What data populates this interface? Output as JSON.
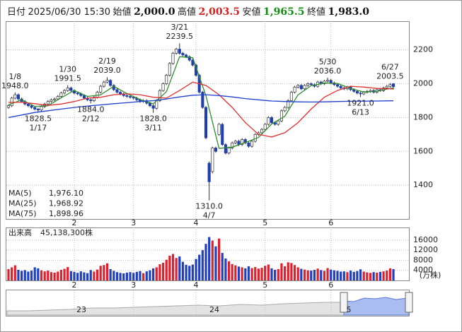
{
  "chart_data": {
    "type": "candlestick",
    "header": {
      "date_label": "日付",
      "date": "2025/06/30 15:30",
      "items": [
        {
          "label": "始値",
          "value": "2,000.0",
          "color": "#111"
        },
        {
          "label": "高値",
          "value": "2,003.5",
          "color": "#d42020"
        },
        {
          "label": "安値",
          "value": "1,965.5",
          "color": "#128a12"
        },
        {
          "label": "終値",
          "value": "1,983.0",
          "color": "#111"
        }
      ]
    },
    "ylim": [
      1200,
      2370
    ],
    "yticks": [
      1400,
      1600,
      1800,
      2000,
      2200
    ],
    "grid": true,
    "up_color": "#ffffff",
    "down_color": "#1f3fae",
    "edge_color": "#333333",
    "month_ticks": [
      {
        "value": 20,
        "label": "2"
      },
      {
        "value": 38,
        "label": "3"
      },
      {
        "value": 57,
        "label": "4"
      },
      {
        "value": 78,
        "label": "5"
      },
      {
        "value": 98,
        "label": "6"
      }
    ],
    "ohlc": [
      [
        1860,
        1878,
        1852,
        1870
      ],
      [
        1870,
        1923,
        1862,
        1915
      ],
      [
        1915,
        1948,
        1907,
        1935
      ],
      [
        1935,
        1943,
        1902,
        1910
      ],
      [
        1910,
        1918,
        1887,
        1895
      ],
      [
        1895,
        1903,
        1872,
        1880
      ],
      [
        1880,
        1888,
        1862,
        1870
      ],
      [
        1870,
        1878,
        1852,
        1860
      ],
      [
        1860,
        1868,
        1842,
        1850
      ],
      [
        1850,
        1858,
        1828.5,
        1845
      ],
      [
        1845,
        1873,
        1837,
        1865
      ],
      [
        1865,
        1888,
        1857,
        1880
      ],
      [
        1880,
        1903,
        1872,
        1895
      ],
      [
        1895,
        1913,
        1887,
        1905
      ],
      [
        1905,
        1918,
        1897,
        1910
      ],
      [
        1910,
        1933,
        1902,
        1925
      ],
      [
        1925,
        1953,
        1917,
        1945
      ],
      [
        1945,
        1968,
        1937,
        1960
      ],
      [
        1960,
        1991.5,
        1952,
        1975
      ],
      [
        1975,
        1983,
        1952,
        1960
      ],
      [
        1960,
        1968,
        1937,
        1945
      ],
      [
        1945,
        1953,
        1932,
        1940
      ],
      [
        1940,
        1948,
        1922,
        1930
      ],
      [
        1930,
        1938,
        1907,
        1915
      ],
      [
        1915,
        1923,
        1897,
        1905
      ],
      [
        1905,
        1913,
        1884,
        1900
      ],
      [
        1900,
        1928,
        1892,
        1920
      ],
      [
        1920,
        1958,
        1912,
        1950
      ],
      [
        1950,
        1993,
        1942,
        1985
      ],
      [
        1985,
        2018,
        1977,
        2010
      ],
      [
        2010,
        2039,
        2002,
        2020
      ],
      [
        2020,
        2028,
        1982,
        1990
      ],
      [
        1990,
        1998,
        1957,
        1965
      ],
      [
        1965,
        1973,
        1942,
        1950
      ],
      [
        1950,
        1958,
        1932,
        1940
      ],
      [
        1940,
        1948,
        1922,
        1930
      ],
      [
        1930,
        1938,
        1917,
        1925
      ],
      [
        1925,
        1933,
        1912,
        1920
      ],
      [
        1920,
        1928,
        1907,
        1915
      ],
      [
        1915,
        1923,
        1897,
        1905
      ],
      [
        1905,
        1913,
        1887,
        1895
      ],
      [
        1895,
        1908,
        1887,
        1900
      ],
      [
        1900,
        1908,
        1877,
        1885
      ],
      [
        1885,
        1893,
        1862,
        1870
      ],
      [
        1870,
        1878,
        1828,
        1855
      ],
      [
        1855,
        1908,
        1847,
        1900
      ],
      [
        1900,
        1968,
        1892,
        1960
      ],
      [
        1960,
        2008,
        1952,
        2000
      ],
      [
        2000,
        2058,
        1992,
        2050
      ],
      [
        2050,
        2128,
        2042,
        2120
      ],
      [
        2120,
        2188,
        2112,
        2180
      ],
      [
        2180,
        2213,
        2172,
        2205
      ],
      [
        2205,
        2239.5,
        2172,
        2180
      ],
      [
        2180,
        2188,
        2162,
        2170
      ],
      [
        2170,
        2178,
        2152,
        2160
      ],
      [
        2160,
        2168,
        2132,
        2140
      ],
      [
        2140,
        2148,
        2102,
        2110
      ],
      [
        2110,
        2118,
        2042,
        2050
      ],
      [
        2050,
        2058,
        1942,
        1950
      ],
      [
        1950,
        1958,
        1852,
        1860
      ],
      [
        1860,
        1868,
        1672,
        1680
      ],
      [
        1530,
        1540,
        1310,
        1420
      ],
      [
        1480,
        1628,
        1470,
        1620
      ],
      [
        1620,
        1628,
        1592,
        1600
      ],
      [
        1700,
        1768,
        1692,
        1760
      ],
      [
        1760,
        1768,
        1632,
        1640
      ],
      [
        1640,
        1648,
        1582,
        1590
      ],
      [
        1590,
        1628,
        1582,
        1620
      ],
      [
        1620,
        1658,
        1612,
        1650
      ],
      [
        1650,
        1668,
        1642,
        1660
      ],
      [
        1660,
        1668,
        1632,
        1640
      ],
      [
        1640,
        1678,
        1632,
        1670
      ],
      [
        1670,
        1678,
        1642,
        1650
      ],
      [
        1650,
        1658,
        1622,
        1630
      ],
      [
        1630,
        1668,
        1622,
        1660
      ],
      [
        1660,
        1708,
        1652,
        1700
      ],
      [
        1700,
        1718,
        1692,
        1710
      ],
      [
        1710,
        1738,
        1702,
        1730
      ],
      [
        1730,
        1768,
        1722,
        1760
      ],
      [
        1760,
        1808,
        1752,
        1800
      ],
      [
        1800,
        1808,
        1762,
        1770
      ],
      [
        1770,
        1778,
        1752,
        1760
      ],
      [
        1760,
        1788,
        1752,
        1780
      ],
      [
        1780,
        1848,
        1772,
        1840
      ],
      [
        1840,
        1868,
        1832,
        1860
      ],
      [
        1860,
        1908,
        1852,
        1900
      ],
      [
        1900,
        1958,
        1892,
        1950
      ],
      [
        1950,
        1988,
        1942,
        1980
      ],
      [
        1980,
        1998,
        1972,
        1990
      ],
      [
        1990,
        1998,
        1962,
        1970
      ],
      [
        1970,
        1998,
        1962,
        1990
      ],
      [
        1990,
        2008,
        1982,
        2000
      ],
      [
        2000,
        2008,
        1987,
        1995
      ],
      [
        1995,
        2003,
        1977,
        1985
      ],
      [
        1985,
        2018,
        1977,
        2010
      ],
      [
        2010,
        2018,
        1992,
        2000
      ],
      [
        2000,
        2023,
        1992,
        2015
      ],
      [
        2015,
        2036,
        2007,
        2020
      ],
      [
        2020,
        2028,
        1997,
        2005
      ],
      [
        2005,
        2013,
        1987,
        1995
      ],
      [
        1995,
        2003,
        1977,
        1985
      ],
      [
        1985,
        1993,
        1967,
        1975
      ],
      [
        1975,
        1983,
        1962,
        1970
      ],
      [
        1970,
        1988,
        1962,
        1980
      ],
      [
        1980,
        1988,
        1957,
        1965
      ],
      [
        1965,
        1973,
        1947,
        1955
      ],
      [
        1955,
        1963,
        1937,
        1945
      ],
      [
        1945,
        1953,
        1921,
        1940
      ],
      [
        1940,
        1958,
        1932,
        1950
      ],
      [
        1950,
        1963,
        1942,
        1955
      ],
      [
        1955,
        1968,
        1947,
        1960
      ],
      [
        1960,
        1968,
        1942,
        1950
      ],
      [
        1950,
        1973,
        1942,
        1965
      ],
      [
        1965,
        1973,
        1952,
        1960
      ],
      [
        1960,
        1983,
        1952,
        1975
      ],
      [
        1975,
        1993,
        1967,
        1985
      ],
      [
        1985,
        2003.5,
        1977,
        1995
      ],
      [
        2000,
        2003.5,
        1965.5,
        1983
      ]
    ],
    "moving_averages": [
      {
        "name": "MA(5)",
        "value_label": "1,976.10",
        "color": "#2e8b2e",
        "x": [
          0,
          4,
          8,
          12,
          16,
          20,
          24,
          28,
          32,
          36,
          40,
          44,
          48,
          52,
          56,
          60,
          64,
          68,
          72,
          76,
          80,
          84,
          88,
          92,
          96,
          100,
          104,
          108,
          112,
          116,
          117
        ],
        "values": [
          1875,
          1905,
          1866,
          1870,
          1917,
          1960,
          1925,
          1934,
          1985,
          1942,
          1906,
          1881,
          1953,
          2160,
          2154,
          1930,
          1618,
          1625,
          1652,
          1682,
          1762,
          1808,
          1934,
          1989,
          2004,
          2002,
          1972,
          1951,
          1956,
          1972,
          1976.1
        ]
      },
      {
        "name": "MA(25)",
        "value_label": "1,968.92",
        "color": "#e03030",
        "x": [
          0,
          4,
          8,
          12,
          16,
          20,
          24,
          28,
          32,
          36,
          40,
          44,
          48,
          52,
          56,
          60,
          64,
          68,
          72,
          76,
          80,
          84,
          88,
          92,
          96,
          100,
          104,
          108,
          112,
          116,
          117
        ],
        "values": [
          1890,
          1890,
          1882,
          1872,
          1880,
          1895,
          1915,
          1920,
          1935,
          1940,
          1935,
          1920,
          1915,
          1960,
          2010,
          1990,
          1935,
          1860,
          1770,
          1700,
          1685,
          1710,
          1770,
          1850,
          1920,
          1960,
          1985,
          1980,
          1972,
          1970,
          1968.92
        ]
      },
      {
        "name": "MA(75)",
        "value_label": "1,898.96",
        "color": "#2040d0",
        "x": [
          0,
          4,
          8,
          12,
          16,
          20,
          24,
          28,
          32,
          36,
          40,
          44,
          48,
          52,
          56,
          60,
          64,
          68,
          72,
          76,
          80,
          84,
          88,
          92,
          96,
          100,
          104,
          108,
          112,
          116,
          117
        ],
        "values": [
          1800,
          1815,
          1830,
          1840,
          1850,
          1860,
          1868,
          1875,
          1882,
          1888,
          1895,
          1900,
          1910,
          1922,
          1932,
          1935,
          1930,
          1922,
          1912,
          1905,
          1898,
          1895,
          1893,
          1892,
          1893,
          1895,
          1896,
          1897,
          1898,
          1899,
          1898.96
        ]
      }
    ],
    "annotations": [
      {
        "at": 2,
        "kind": "high",
        "date": "1/8",
        "label": "1948.0"
      },
      {
        "at": 9,
        "kind": "low",
        "date": "1/17",
        "label": "1828.5"
      },
      {
        "at": 18,
        "kind": "high",
        "date": "1/30",
        "label": "1991.5"
      },
      {
        "at": 25,
        "kind": "low",
        "date": "2/12",
        "label": "1884.0"
      },
      {
        "at": 30,
        "kind": "high",
        "date": "2/19",
        "label": "2039.0"
      },
      {
        "at": 44,
        "kind": "low",
        "date": "3/11",
        "label": "1828.0"
      },
      {
        "at": 52,
        "kind": "high",
        "date": "3/21",
        "label": "2239.5"
      },
      {
        "at": 61,
        "kind": "low",
        "date": "4/7",
        "label": "1310.0"
      },
      {
        "at": 97,
        "kind": "high",
        "date": "5/30",
        "label": "2036.0"
      },
      {
        "at": 107,
        "kind": "low",
        "date": "6/13",
        "label": "1921.0"
      },
      {
        "at": 116,
        "kind": "high",
        "date": "6/27",
        "label": "2003.5"
      }
    ],
    "volume": {
      "title": "出来高",
      "total_label": "45,138,300株",
      "unit": "(万株)",
      "ylim": [
        0,
        21000
      ],
      "yticks": [
        4000,
        8000,
        12000,
        16000
      ],
      "up_color": "#e0202c",
      "down_color": "#2040c0",
      "values": [
        4500,
        5200,
        6000,
        4200,
        3800,
        4100,
        3500,
        3900,
        5200,
        4800,
        4000,
        3600,
        3900,
        3300,
        3100,
        3500,
        4200,
        4600,
        5300,
        3700,
        3400,
        3000,
        3600,
        3200,
        2900,
        4100,
        3500,
        4300,
        5800,
        6100,
        6800,
        4500,
        3800,
        3300,
        3000,
        2800,
        3100,
        3300,
        3000,
        3400,
        3700,
        2900,
        3600,
        4000,
        4800,
        5200,
        6400,
        7000,
        8200,
        9800,
        10500,
        8900,
        9500,
        7400,
        6200,
        5800,
        6300,
        8500,
        10200,
        12000,
        14500,
        17200,
        15800,
        13500,
        16600,
        10900,
        8700,
        7600,
        6500,
        6000,
        5500,
        5200,
        4800,
        5600,
        4900,
        5300,
        4700,
        5000,
        5800,
        6300,
        4800,
        4200,
        4500,
        6800,
        5600,
        7200,
        6900,
        6100,
        5200,
        4600,
        4300,
        4000,
        3900,
        4200,
        4700,
        4100,
        3800,
        4900,
        4300,
        4000,
        3800,
        3500,
        3600,
        3300,
        3900,
        3400,
        3700,
        4400,
        3500,
        3200,
        3000,
        3300,
        3100,
        3400,
        3600,
        3900,
        4800,
        4513.83
      ]
    },
    "navigator": {
      "labels": [
        "23",
        "24",
        "5"
      ]
    }
  }
}
